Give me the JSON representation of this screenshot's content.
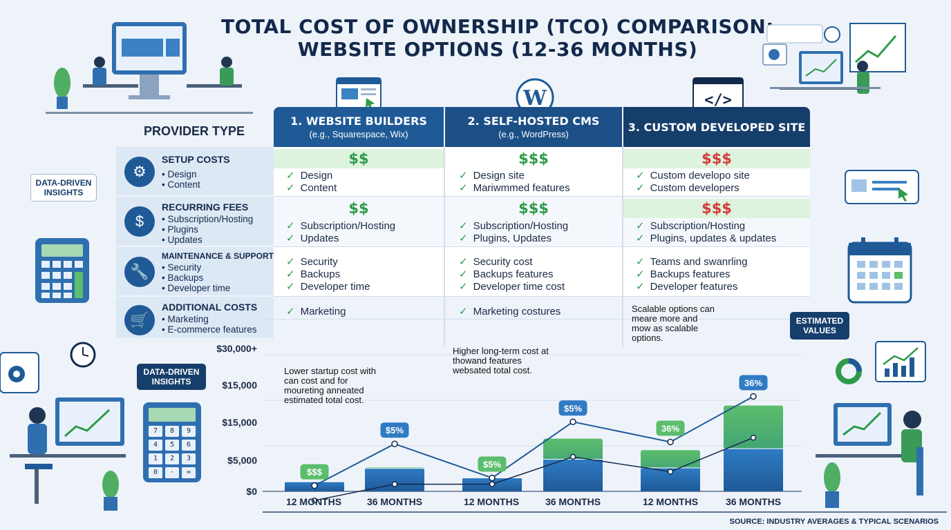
{
  "title": {
    "line1": "TOTAL COST OF OWNERSHIP (TCO) COMPARISON:",
    "line2": "WEBSITE OPTIONS (12-36 MONTHS)"
  },
  "provider_type": "PROVIDER TYPE",
  "columns": [
    {
      "name": "1. WEBSITE BUILDERS",
      "example": "(e.g., Squarespace, Wix)"
    },
    {
      "name": "2. SELF-HOSTED CMS",
      "example": "(e.g., WordPress)"
    },
    {
      "name": "3. CUSTOM DEVELOPED SITE",
      "example": ""
    }
  ],
  "rows": [
    {
      "label": "SETUP COSTS",
      "subs": [
        "• Design",
        "• Content"
      ],
      "icon": "gear-icon",
      "cost": [
        "$$",
        "$$$",
        "$$$"
      ],
      "cells": [
        [
          "Design",
          "Content"
        ],
        [
          "Design site",
          "Mariwmmed features"
        ],
        [
          "Custom developo site",
          "Custom developers"
        ]
      ]
    },
    {
      "label": "RECURRING FEES",
      "subs": [
        "• Subscription/Hosting",
        "• Plugins",
        "• Updates"
      ],
      "icon": "dollar-cycle-icon",
      "cost": [
        "$$",
        "$$$",
        "$$$"
      ],
      "cells": [
        [
          "Subscription/Hosting",
          "Updates"
        ],
        [
          "Subscription/Hosting",
          "Plugins, Updates"
        ],
        [
          "Subscription/Hosting",
          "Plugins, updates & updates"
        ]
      ]
    },
    {
      "label": "MAINTENANCE & SUPPORT",
      "subs": [
        "• Security",
        "• Backups",
        "• Developer time"
      ],
      "icon": "wrench-icon",
      "cells": [
        [
          "Security",
          "Backups",
          "Developer time"
        ],
        [
          "Security cost",
          "Backups features",
          "Developer time cost"
        ],
        [
          "Teams and swanrling",
          "Backups features",
          "Developer features"
        ]
      ]
    },
    {
      "label": "ADDITIONAL COSTS",
      "subs": [
        "• Marketing",
        "• E-commerce features"
      ],
      "icon": "cart-icon",
      "cells": [
        [
          "Marketing"
        ],
        [
          "Marketing costures"
        ],
        []
      ]
    }
  ],
  "check_glyph": "✓",
  "colors": {
    "navy": "#163e6b",
    "blue": "#1f5a97",
    "green": "#5cbd6c",
    "red": "#d33c3c"
  },
  "chart_data": {
    "type": "bar",
    "categories": [
      "12 MONTHS",
      "36 MONTHS",
      "12 MONTHS",
      "36 MONTHS",
      "12 MONTHS",
      "36 MONTHS"
    ],
    "groups": [
      "1. WEBSITE BUILDERS",
      "2. SELF-HOSTED CMS",
      "3. CUSTOM DEVELOPED SITE"
    ],
    "y_tick_labels": [
      "$30,000+",
      "$15,000",
      "$15,000",
      "$5,000",
      "$0"
    ],
    "series": [
      {
        "values": [
          2000,
          5000,
          2900,
          11000,
          8600,
          17900
        ]
      },
      {
        "values": [
          2000,
          4800,
          2800,
          6700,
          4900,
          8900
        ]
      }
    ],
    "line_upper": [
      1200,
      9900,
      2800,
      14500,
      10300,
      19800
    ],
    "line_lower": [
      -1900,
      1500,
      1500,
      7200,
      4100,
      11200
    ],
    "badges": [
      "$$$",
      "$5%",
      "$5%",
      "$5%",
      "36%",
      "36%"
    ],
    "annotations": [
      "Lower startup cost with can cost and for moureting anneated estimated total cost.",
      "Higher long-term cost at thowand features websated total cost.",
      "Scalable options can meare more and mow as scalable options."
    ],
    "estimated_label": "ESTIMATED VALUES",
    "ylim": [
      0,
      38000
    ]
  },
  "side_labels": {
    "insights_top": "DATA-DRIVEN INSIGHTS",
    "insights_bottom": "DATA-DRIVEN INSIGHTS"
  },
  "calc_keys": [
    "7",
    "8",
    "9",
    "4",
    "5",
    "6",
    "1",
    "2",
    "3",
    "0",
    "·",
    "="
  ],
  "source": "SOURCE: INDUSTRY AVERAGES & TYPICAL SCENARIOS"
}
